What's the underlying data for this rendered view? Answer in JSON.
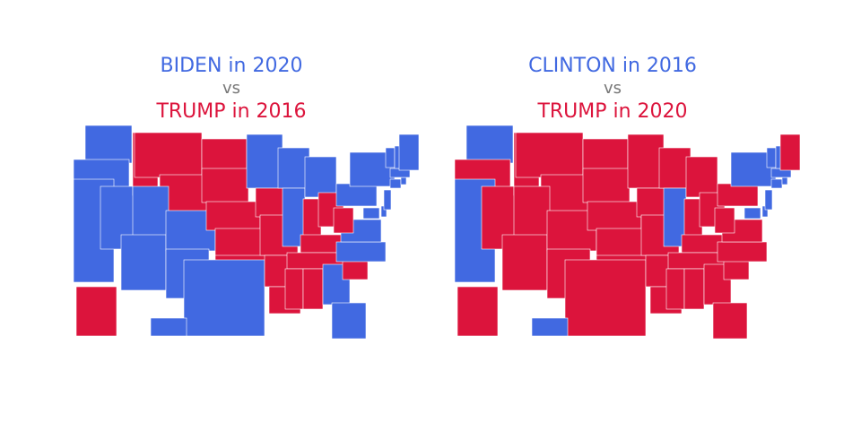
{
  "maps": [
    {
      "title": [
        {
          "text": "BIDEN in 2020",
          "color": "#4169e1"
        },
        {
          "text": "vs",
          "color": "#777777"
        },
        {
          "text": "TRUMP in 2016",
          "color": "#dc143c"
        }
      ],
      "fills": [
        "#4169e1",
        "#4169e1",
        "#4169e1",
        "#4169e1",
        "#dc143c",
        "#dc143c",
        "#dc143c",
        "#4169e1",
        "#4169e1",
        "#4169e1",
        "#4169e1",
        "#dc143c",
        "#dc143c",
        "#dc143c",
        "#dc143c",
        "#dc143c",
        "#4169e1",
        "#4169e1",
        "#dc143c",
        "#dc143c",
        "#dc143c",
        "#dc143c",
        "#4169e1",
        "#4169e1",
        "#4169e1",
        "#dc143c",
        "#dc143c",
        "#dc143c",
        "#dc143c",
        "#dc143c",
        "#dc143c",
        "#4169e1",
        "#4169e1",
        "#dc143c",
        "#4169e1",
        "#4169e1",
        "#dc143c",
        "#4169e1",
        "#4169e1",
        "#4169e1",
        "#4169e1",
        "#4169e1",
        "#4169e1",
        "#4169e1",
        "#4169e1",
        "#4169e1",
        "#4169e1",
        "#4169e1",
        "#dc143c",
        "#4169e1"
      ]
    },
    {
      "title": [
        {
          "text": "CLINTON in 2016",
          "color": "#4169e1"
        },
        {
          "text": "vs",
          "color": "#777777"
        },
        {
          "text": "TRUMP in 2020",
          "color": "#dc143c"
        }
      ],
      "fills": [
        "#4169e1",
        "#dc143c",
        "#4169e1",
        "#dc143c",
        "#dc143c",
        "#dc143c",
        "#dc143c",
        "#dc143c",
        "#dc143c",
        "#dc143c",
        "#dc143c",
        "#dc143c",
        "#dc143c",
        "#dc143c",
        "#dc143c",
        "#dc143c",
        "#dc143c",
        "#dc143c",
        "#dc143c",
        "#dc143c",
        "#dc143c",
        "#dc143c",
        "#dc143c",
        "#4169e1",
        "#dc143c",
        "#dc143c",
        "#dc143c",
        "#dc143c",
        "#dc143c",
        "#dc143c",
        "#dc143c",
        "#dc143c",
        "#dc143c",
        "#dc143c",
        "#dc143c",
        "#dc143c",
        "#dc143c",
        "#dc143c",
        "#4169e1",
        "#4169e1",
        "#4169e1",
        "#4169e1",
        "#4169e1",
        "#4169e1",
        "#4169e1",
        "#4169e1",
        "#4169e1",
        "#dc143c",
        "#dc143c",
        "#4169e1"
      ]
    }
  ]
}
